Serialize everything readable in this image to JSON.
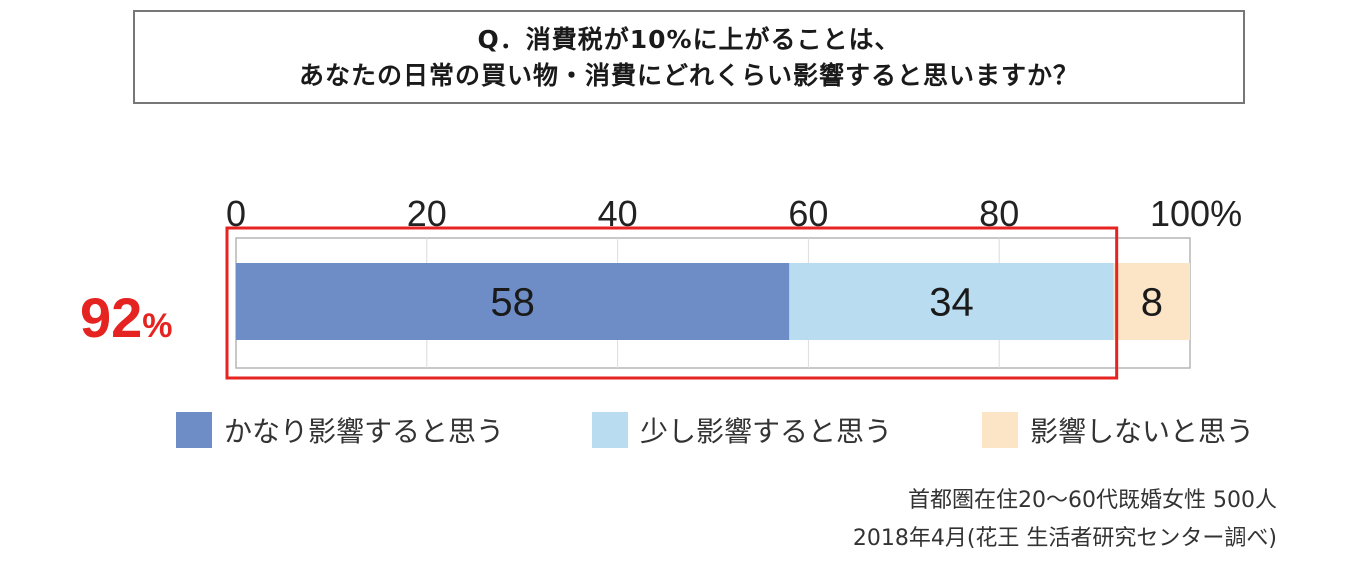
{
  "question": {
    "line1": "Q．消費税が10%に上がることは、",
    "line2": "あなたの日常の買い物・消費にどれくらい影響すると思いますか？"
  },
  "highlight": {
    "value_text": "92",
    "unit_text": "%",
    "color": "#e52320"
  },
  "chart_data": {
    "type": "bar",
    "orientation": "horizontal-stacked",
    "xlim": [
      0,
      100
    ],
    "tick_values": [
      0,
      20,
      40,
      60,
      80,
      100
    ],
    "tick_labels": [
      "0",
      "20",
      "40",
      "60",
      "80",
      "100%"
    ],
    "series": [
      {
        "name": "かなり影響すると思う",
        "values": [
          58
        ],
        "label": "58",
        "color": "#6e8cc5"
      },
      {
        "name": "少し影響すると思う",
        "values": [
          34
        ],
        "label": "34",
        "color": "#b9dcf0"
      },
      {
        "name": "影響しないと思う",
        "values": [
          8
        ],
        "label": "8",
        "color": "#fbe5c6"
      }
    ],
    "grid": true,
    "legend_position": "bottom"
  },
  "source": {
    "line1": "首都圏在住20～60代既婚女性 500人",
    "line2": "2018年4月(花王 生活者研究センター調べ)"
  }
}
